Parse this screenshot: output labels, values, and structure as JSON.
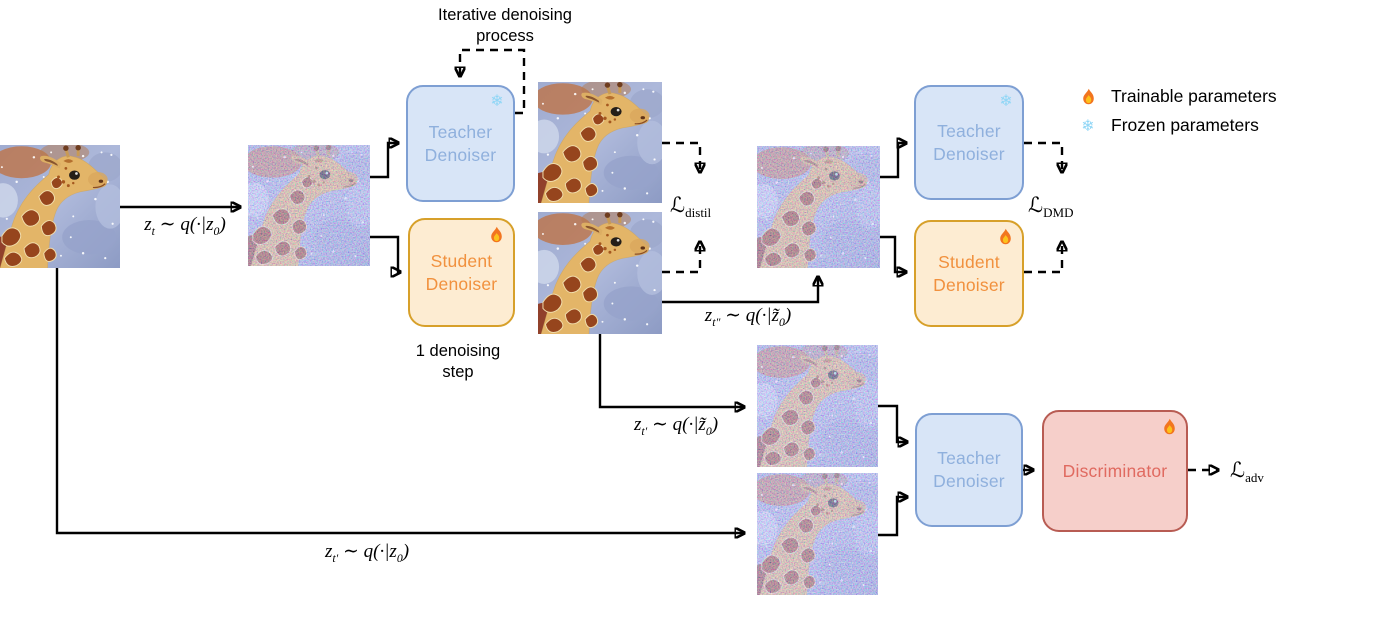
{
  "figure": {
    "captions": {
      "iterative_line1": "Iterative denoising",
      "iterative_line2": "process",
      "one_step_line1": "1 denoising",
      "one_step_line2": "step"
    },
    "math_labels": {
      "zt": "z_{t} ∼ q(·|z_{0})",
      "zt_doubleprime": "z_{t″} ∼ q(·|z̃_{0})",
      "zt_prime_tilde": "z_{t′} ∼ q(·|z̃_{0})",
      "zt_prime": "z_{t′} ∼ q(·|z_{0})",
      "loss_distil": "ℒ_{distil}",
      "loss_dmd": "ℒ_{DMD}",
      "loss_adv": "ℒ_{adv}"
    },
    "boxes": {
      "teacher1": {
        "line1": "Teacher",
        "line2": "Denoiser",
        "badge": "frozen"
      },
      "student1": {
        "line1": "Student",
        "line2": "Denoiser",
        "badge": "trainable"
      },
      "teacher2": {
        "line1": "Teacher",
        "line2": "Denoiser",
        "badge": "frozen"
      },
      "student2": {
        "line1": "Student",
        "line2": "Denoiser",
        "badge": "trainable"
      },
      "teacher3": {
        "line1": "Teacher",
        "line2": "Denoiser",
        "badge": "none"
      },
      "discriminator": {
        "label": "Discriminator",
        "badge": "trainable"
      }
    },
    "legend": {
      "trainable": "Trainable parameters",
      "frozen": "Frozen parameters"
    },
    "icons": {
      "frozen_glyph": "❄",
      "fire": "flame-icon"
    }
  },
  "colors": {
    "teacher_fill": "#d8e5f7",
    "teacher_border": "#7e9fd3",
    "teacher_text": "#8fb0dd",
    "student_fill": "#fdecd2",
    "student_border": "#d7a02a",
    "student_text": "#f1913e",
    "disc_fill": "#f6cfca",
    "disc_border": "#b85c53",
    "disc_text": "#e06a60",
    "snowflake": "#8fd6f6",
    "arrow": "#000000"
  }
}
